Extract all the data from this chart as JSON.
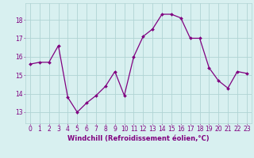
{
  "x": [
    0,
    1,
    2,
    3,
    4,
    5,
    6,
    7,
    8,
    9,
    10,
    11,
    12,
    13,
    14,
    15,
    16,
    17,
    18,
    19,
    20,
    21,
    22,
    23
  ],
  "y": [
    15.6,
    15.7,
    15.7,
    16.6,
    13.8,
    13.0,
    13.5,
    13.9,
    14.4,
    15.2,
    13.9,
    16.0,
    17.1,
    17.5,
    18.3,
    18.3,
    18.1,
    17.0,
    17.0,
    15.4,
    14.7,
    14.3,
    15.2,
    15.1
  ],
  "line_color": "#800080",
  "marker": "D",
  "marker_size": 2.0,
  "linewidth": 0.9,
  "bg_color": "#d8f0f0",
  "grid_color": "#b0d4d4",
  "xlabel": "Windchill (Refroidissement éolien,°C)",
  "xlabel_color": "#800080",
  "xlabel_fontsize": 6.0,
  "tick_color": "#800080",
  "tick_fontsize": 5.5,
  "ytick_labels": [
    "13",
    "14",
    "15",
    "16",
    "17",
    "18"
  ],
  "ytick_values": [
    13,
    14,
    15,
    16,
    17,
    18
  ],
  "ylim": [
    12.4,
    18.9
  ],
  "xlim": [
    -0.5,
    23.5
  ]
}
